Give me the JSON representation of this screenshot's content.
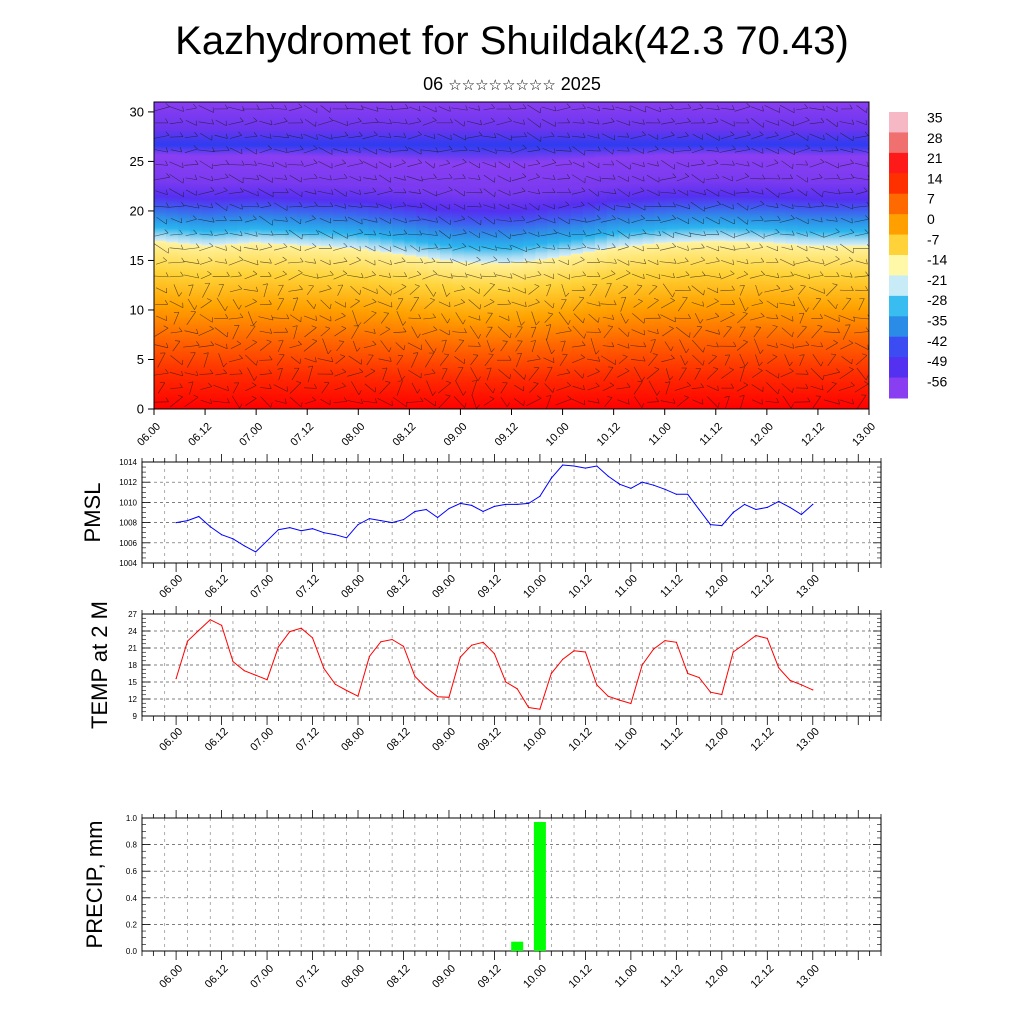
{
  "header": {
    "title": "Kazhydromet for Shuildak(42.3 70.43)",
    "subtitle_prefix": "06",
    "subtitle_stars": "☆☆☆☆☆☆☆☆",
    "subtitle_suffix": "2025"
  },
  "colorbar": {
    "labels": [
      "35",
      "28",
      "21",
      "14",
      "7",
      "0",
      "-7",
      "-14",
      "-21",
      "-28",
      "-35",
      "-42",
      "-49",
      "-56"
    ]
  },
  "chart_data": [
    {
      "type": "heatmap",
      "name": "",
      "x_tick_labels": [
        "06.00",
        "06.12",
        "07.00",
        "07.12",
        "08.00",
        "08.12",
        "09.00",
        "09.12",
        "10.00",
        "10.12",
        "11.00",
        "11.12",
        "12.00",
        "12.12",
        "13.00"
      ],
      "y_tick_labels": [
        "0",
        "5",
        "10",
        "15",
        "20",
        "25",
        "30"
      ],
      "ylim": [
        0,
        31
      ],
      "xlim": [
        0,
        168
      ],
      "description_values": "temperature field by height (0-31) with wind barbs; values from colorbar range -56..35",
      "freezing_level": {
        "x_hours": [
          0,
          12,
          24,
          36,
          48,
          60,
          72,
          84,
          96,
          108,
          120,
          132,
          144,
          156,
          168
        ],
        "height": [
          17.0,
          16.5,
          16.8,
          16.5,
          16.2,
          15.5,
          14.8,
          14.7,
          15.4,
          16.3,
          16.8,
          17.0,
          16.8,
          16.5,
          16.5
        ]
      }
    },
    {
      "type": "line",
      "ylabel": "PMSL",
      "ylim": [
        1004,
        1014
      ],
      "yticks": [
        1004,
        1006,
        1008,
        1010,
        1012,
        1014
      ],
      "x_tick_labels": [
        "06.00",
        "06.12",
        "07.00",
        "07.12",
        "08.00",
        "08.12",
        "09.00",
        "09.12",
        "10.00",
        "10.12",
        "11.00",
        "11.12",
        "12.00",
        "12.12",
        "13.00"
      ],
      "color": "#0000ff",
      "x_hours": [
        0,
        3,
        6,
        9,
        12,
        15,
        18,
        21,
        24,
        27,
        30,
        33,
        36,
        39,
        42,
        45,
        48,
        51,
        54,
        57,
        60,
        63,
        66,
        69,
        72,
        75,
        78,
        81,
        84,
        87,
        90,
        93,
        96,
        99,
        102,
        105,
        108,
        111,
        114,
        117,
        120,
        123,
        126,
        129,
        132,
        135,
        138,
        141,
        144,
        147,
        150,
        153,
        156,
        159,
        162,
        165,
        168
      ],
      "values": [
        1008.0,
        1008.2,
        1008.6,
        1007.6,
        1006.8,
        1006.4,
        1005.7,
        1005.1,
        1006.2,
        1007.3,
        1007.5,
        1007.2,
        1007.4,
        1007.0,
        1006.8,
        1006.5,
        1007.8,
        1008.4,
        1008.2,
        1008.0,
        1008.3,
        1009.1,
        1009.3,
        1008.5,
        1009.4,
        1009.9,
        1009.7,
        1009.1,
        1009.6,
        1009.8,
        1009.8,
        1009.9,
        1010.6,
        1012.4,
        1013.7,
        1013.6,
        1013.4,
        1013.6,
        1012.6,
        1011.8,
        1011.4,
        1012.0,
        1011.7,
        1011.3,
        1010.8,
        1010.8,
        1009.3,
        1007.8,
        1007.7,
        1009.0,
        1009.8,
        1009.3,
        1009.5,
        1010.1,
        1009.5,
        1008.8,
        1009.8
      ]
    },
    {
      "type": "line",
      "ylabel": "TEMP at 2 M",
      "ylim": [
        9,
        27
      ],
      "yticks": [
        9,
        12,
        15,
        18,
        21,
        24,
        27
      ],
      "x_tick_labels": [
        "06.00",
        "06.12",
        "07.00",
        "07.12",
        "08.00",
        "08.12",
        "09.00",
        "09.12",
        "10.00",
        "10.12",
        "11.00",
        "11.12",
        "12.00",
        "12.12",
        "13.00"
      ],
      "color": "#ff0000",
      "x_hours": [
        0,
        3,
        6,
        9,
        12,
        15,
        18,
        21,
        24,
        27,
        30,
        33,
        36,
        39,
        42,
        45,
        48,
        51,
        54,
        57,
        60,
        63,
        66,
        69,
        72,
        75,
        78,
        81,
        84,
        87,
        90,
        93,
        96,
        99,
        102,
        105,
        108,
        111,
        114,
        117,
        120,
        123,
        126,
        129,
        132,
        135,
        138,
        141,
        144,
        147,
        150,
        153,
        156,
        159,
        162,
        165,
        168
      ],
      "values": [
        15.6,
        22.2,
        24.1,
        26.0,
        25.0,
        18.6,
        17.0,
        16.2,
        15.4,
        21.2,
        23.9,
        24.5,
        22.8,
        17.4,
        14.6,
        13.5,
        12.5,
        19.5,
        22.1,
        22.5,
        21.3,
        16.0,
        14.0,
        12.4,
        12.3,
        19.4,
        21.5,
        22.0,
        20.0,
        15.0,
        13.8,
        10.5,
        10.2,
        16.5,
        19.0,
        20.5,
        20.3,
        14.5,
        12.5,
        11.8,
        11.2,
        18.0,
        20.8,
        22.3,
        22.0,
        16.5,
        15.8,
        13.2,
        12.8,
        20.3,
        21.7,
        23.2,
        22.7,
        17.5,
        15.3,
        14.5,
        13.6
      ]
    },
    {
      "type": "bar",
      "ylabel": "PRECIP, mm",
      "ylim": [
        0.0,
        1.0
      ],
      "yticks": [
        "0.0",
        "0.2",
        "0.4",
        "0.6",
        "0.8",
        "1.0"
      ],
      "x_tick_labels": [
        "06.00",
        "06.12",
        "07.00",
        "07.12",
        "08.00",
        "08.12",
        "09.00",
        "09.12",
        "10.00",
        "10.12",
        "11.00",
        "11.12",
        "12.00",
        "12.12",
        "13.00"
      ],
      "color": "#00ff00",
      "x_hours": [
        90,
        96
      ],
      "values": [
        0.07,
        0.97
      ]
    }
  ]
}
